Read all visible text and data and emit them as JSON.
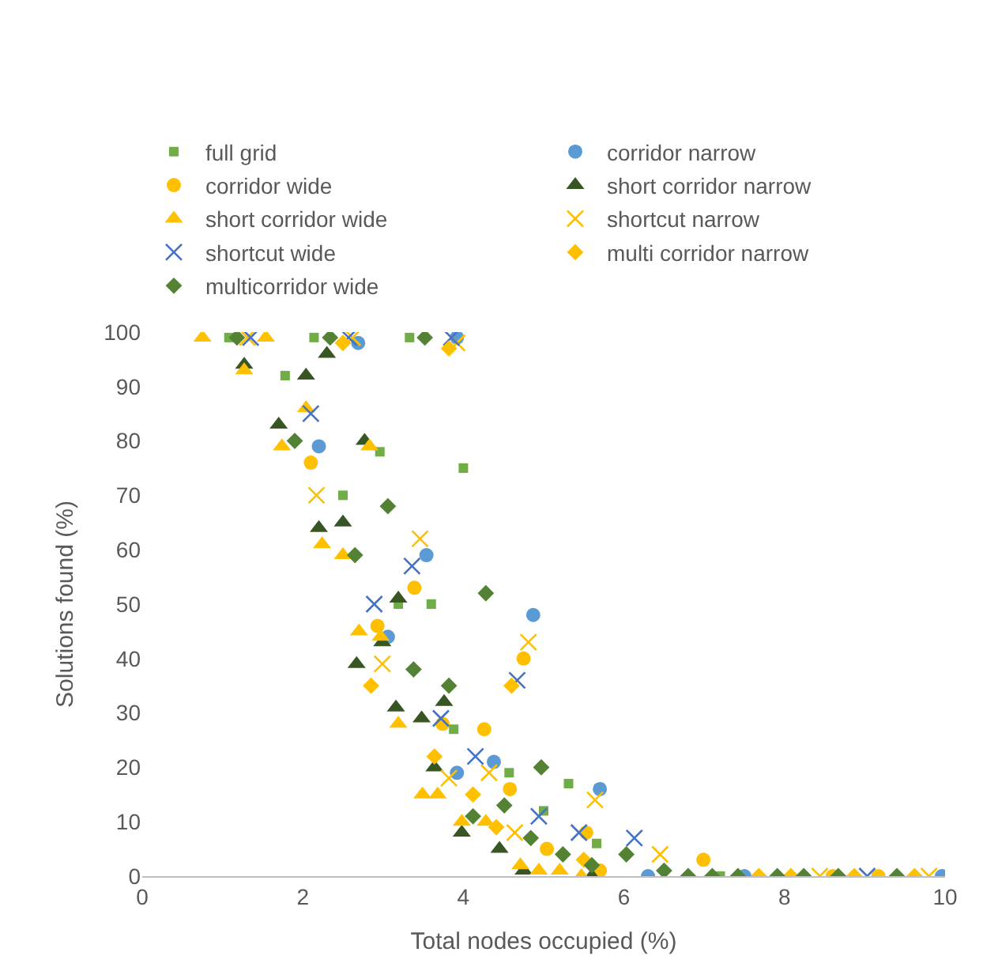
{
  "chart_data": {
    "type": "scatter",
    "xlabel": "Total nodes occupied (%)",
    "ylabel": "Solutions found (%)",
    "xlim": [
      0,
      10
    ],
    "xticks": [
      0,
      2,
      4,
      6,
      8,
      10
    ],
    "ylim": [
      0,
      100
    ],
    "yticks": [
      0,
      10,
      20,
      30,
      40,
      50,
      60,
      70,
      80,
      90,
      100
    ],
    "grid": false,
    "legend": "top",
    "series": [
      {
        "name": "full grid",
        "color": "#70ad47",
        "marker": "square",
        "x": [
          1.08,
          1.78,
          2.14,
          2.5,
          2.96,
          3.33,
          3.19,
          3.6,
          4.0,
          3.88,
          4.57,
          5.0,
          5.31,
          5.66,
          7.2
        ],
        "values": [
          99,
          92,
          99,
          70,
          78,
          99,
          50,
          50,
          75,
          27,
          19,
          12,
          17,
          6,
          0
        ]
      },
      {
        "name": "corridor narrow",
        "color": "#5b9bd5",
        "marker": "circle",
        "x": [
          2.69,
          3.92,
          2.2,
          3.54,
          3.06,
          4.87,
          3.92,
          4.38,
          5.7,
          6.3,
          7.5,
          9.96
        ],
        "values": [
          98,
          99,
          79,
          59,
          44,
          48,
          19,
          21,
          16,
          0,
          0,
          0
        ]
      },
      {
        "name": "corridor wide",
        "color": "#ffc000",
        "marker": "circle",
        "x": [
          2.1,
          3.39,
          2.93,
          3.74,
          4.26,
          4.75,
          4.58,
          5.53,
          5.04,
          6.99,
          5.7,
          8.6,
          9.17
        ],
        "values": [
          76,
          53,
          46,
          28,
          27,
          40,
          16,
          8,
          5,
          3,
          1,
          0,
          0
        ]
      },
      {
        "name": "short corridor narrow",
        "color": "#375623",
        "marker": "triangle",
        "x": [
          1.27,
          1.7,
          2.04,
          2.3,
          2.77,
          2.2,
          2.5,
          3.19,
          2.99,
          2.67,
          3.16,
          3.48,
          3.76,
          3.64,
          3.98,
          4.45,
          4.75,
          5.6
        ],
        "values": [
          94,
          83,
          92,
          96,
          80,
          64,
          65,
          51,
          43,
          39,
          31,
          29,
          32,
          20,
          8,
          5,
          1,
          0
        ]
      },
      {
        "name": "short corridor wide",
        "color": "#ffc000",
        "marker": "triangle",
        "x": [
          0.75,
          1.54,
          1.27,
          1.74,
          2.04,
          2.83,
          2.24,
          2.5,
          2.7,
          2.97,
          3.19,
          3.49,
          3.68,
          3.98,
          4.28,
          4.71,
          4.94,
          5.2,
          5.47
        ],
        "values": [
          99,
          99,
          93,
          79,
          86,
          79,
          61,
          59,
          45,
          44,
          28,
          15,
          15,
          10,
          10,
          2,
          1,
          1,
          0
        ]
      },
      {
        "name": "shortcut narrow",
        "color": "#ffc000",
        "marker": "cross",
        "x": [
          1.31,
          2.62,
          3.92,
          2.17,
          3.46,
          2.99,
          4.81,
          3.82,
          4.32,
          5.64,
          4.64,
          6.45,
          8.44,
          9.8
        ],
        "values": [
          99,
          99,
          98,
          70,
          62,
          39,
          43,
          18,
          19,
          14,
          8,
          4,
          0,
          0
        ]
      },
      {
        "name": "shortcut wide",
        "color": "#4472c4",
        "marker": "cross",
        "x": [
          1.35,
          2.57,
          3.85,
          2.1,
          3.36,
          2.89,
          4.67,
          3.72,
          4.15,
          4.94,
          5.44,
          6.13,
          9.03
        ],
        "values": [
          99,
          99,
          99,
          85,
          57,
          50,
          36,
          29,
          22,
          11,
          8,
          7,
          0
        ]
      },
      {
        "name": "multi corridor narrow",
        "color": "#ffc000",
        "marker": "diamond",
        "x": [
          2.5,
          3.82,
          2.85,
          3.64,
          4.6,
          4.12,
          4.41,
          5.5,
          7.68,
          8.08,
          8.87,
          9.62
        ],
        "values": [
          98,
          97,
          35,
          22,
          35,
          15,
          9,
          3,
          0,
          0,
          0,
          0
        ]
      },
      {
        "name": "multicorridor wide",
        "color": "#548235",
        "marker": "diamond",
        "x": [
          1.18,
          2.34,
          3.52,
          1.9,
          3.06,
          2.65,
          4.28,
          3.38,
          3.82,
          4.97,
          4.51,
          4.12,
          4.84,
          5.24,
          5.6,
          6.03,
          6.5,
          6.8,
          7.1,
          7.42,
          7.91,
          8.24,
          8.67,
          9.4
        ],
        "values": [
          99,
          99,
          99,
          80,
          68,
          59,
          52,
          38,
          35,
          20,
          13,
          11,
          7,
          4,
          2,
          4,
          1,
          0,
          0,
          0,
          0,
          0,
          0,
          0
        ]
      }
    ]
  }
}
